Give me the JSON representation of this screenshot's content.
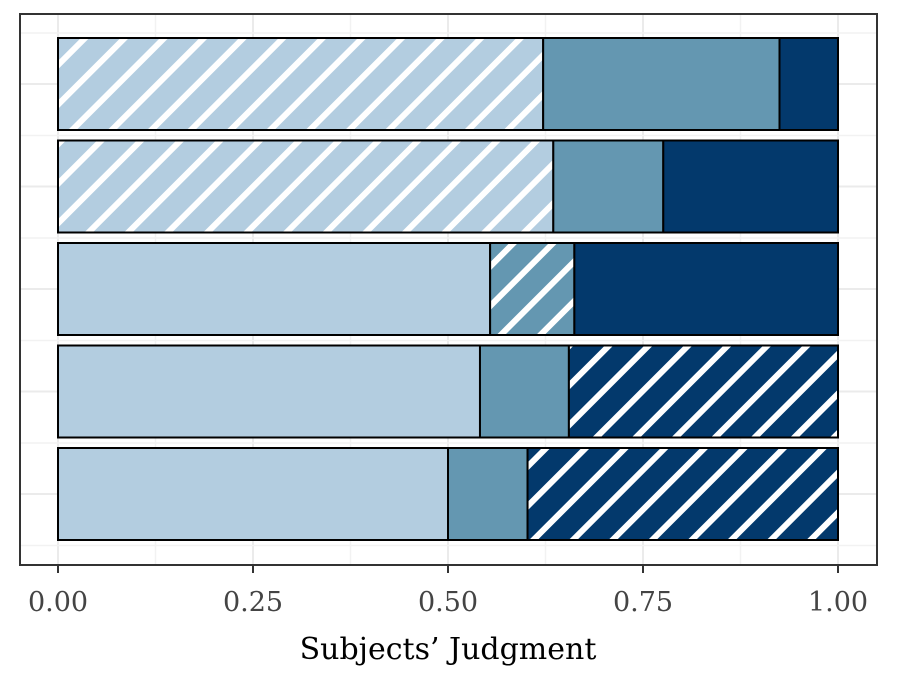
{
  "chart_data": {
    "type": "bar",
    "orientation": "horizontal",
    "stacked": true,
    "xlabel": "Subjects’ Judgment",
    "ylabel": "",
    "xlim": [
      0,
      1
    ],
    "x_ticks": [
      "0.00",
      "0.25",
      "0.50",
      "0.75",
      "1.00"
    ],
    "x_tick_values": [
      0,
      0.25,
      0.5,
      0.75,
      1
    ],
    "grid": true,
    "colors": [
      "#b3cde0",
      "#6497b1",
      "#03396c"
    ],
    "hatch_color": "#ffffff",
    "bars": [
      {
        "segments": [
          0.622,
          0.303,
          0.075
        ],
        "hatched_segment": 0
      },
      {
        "segments": [
          0.635,
          0.141,
          0.224
        ],
        "hatched_segment": 0
      },
      {
        "segments": [
          0.554,
          0.108,
          0.338
        ],
        "hatched_segment": 1
      },
      {
        "segments": [
          0.541,
          0.114,
          0.345
        ],
        "hatched_segment": 2
      },
      {
        "segments": [
          0.5,
          0.102,
          0.398
        ],
        "hatched_segment": 2
      }
    ]
  }
}
